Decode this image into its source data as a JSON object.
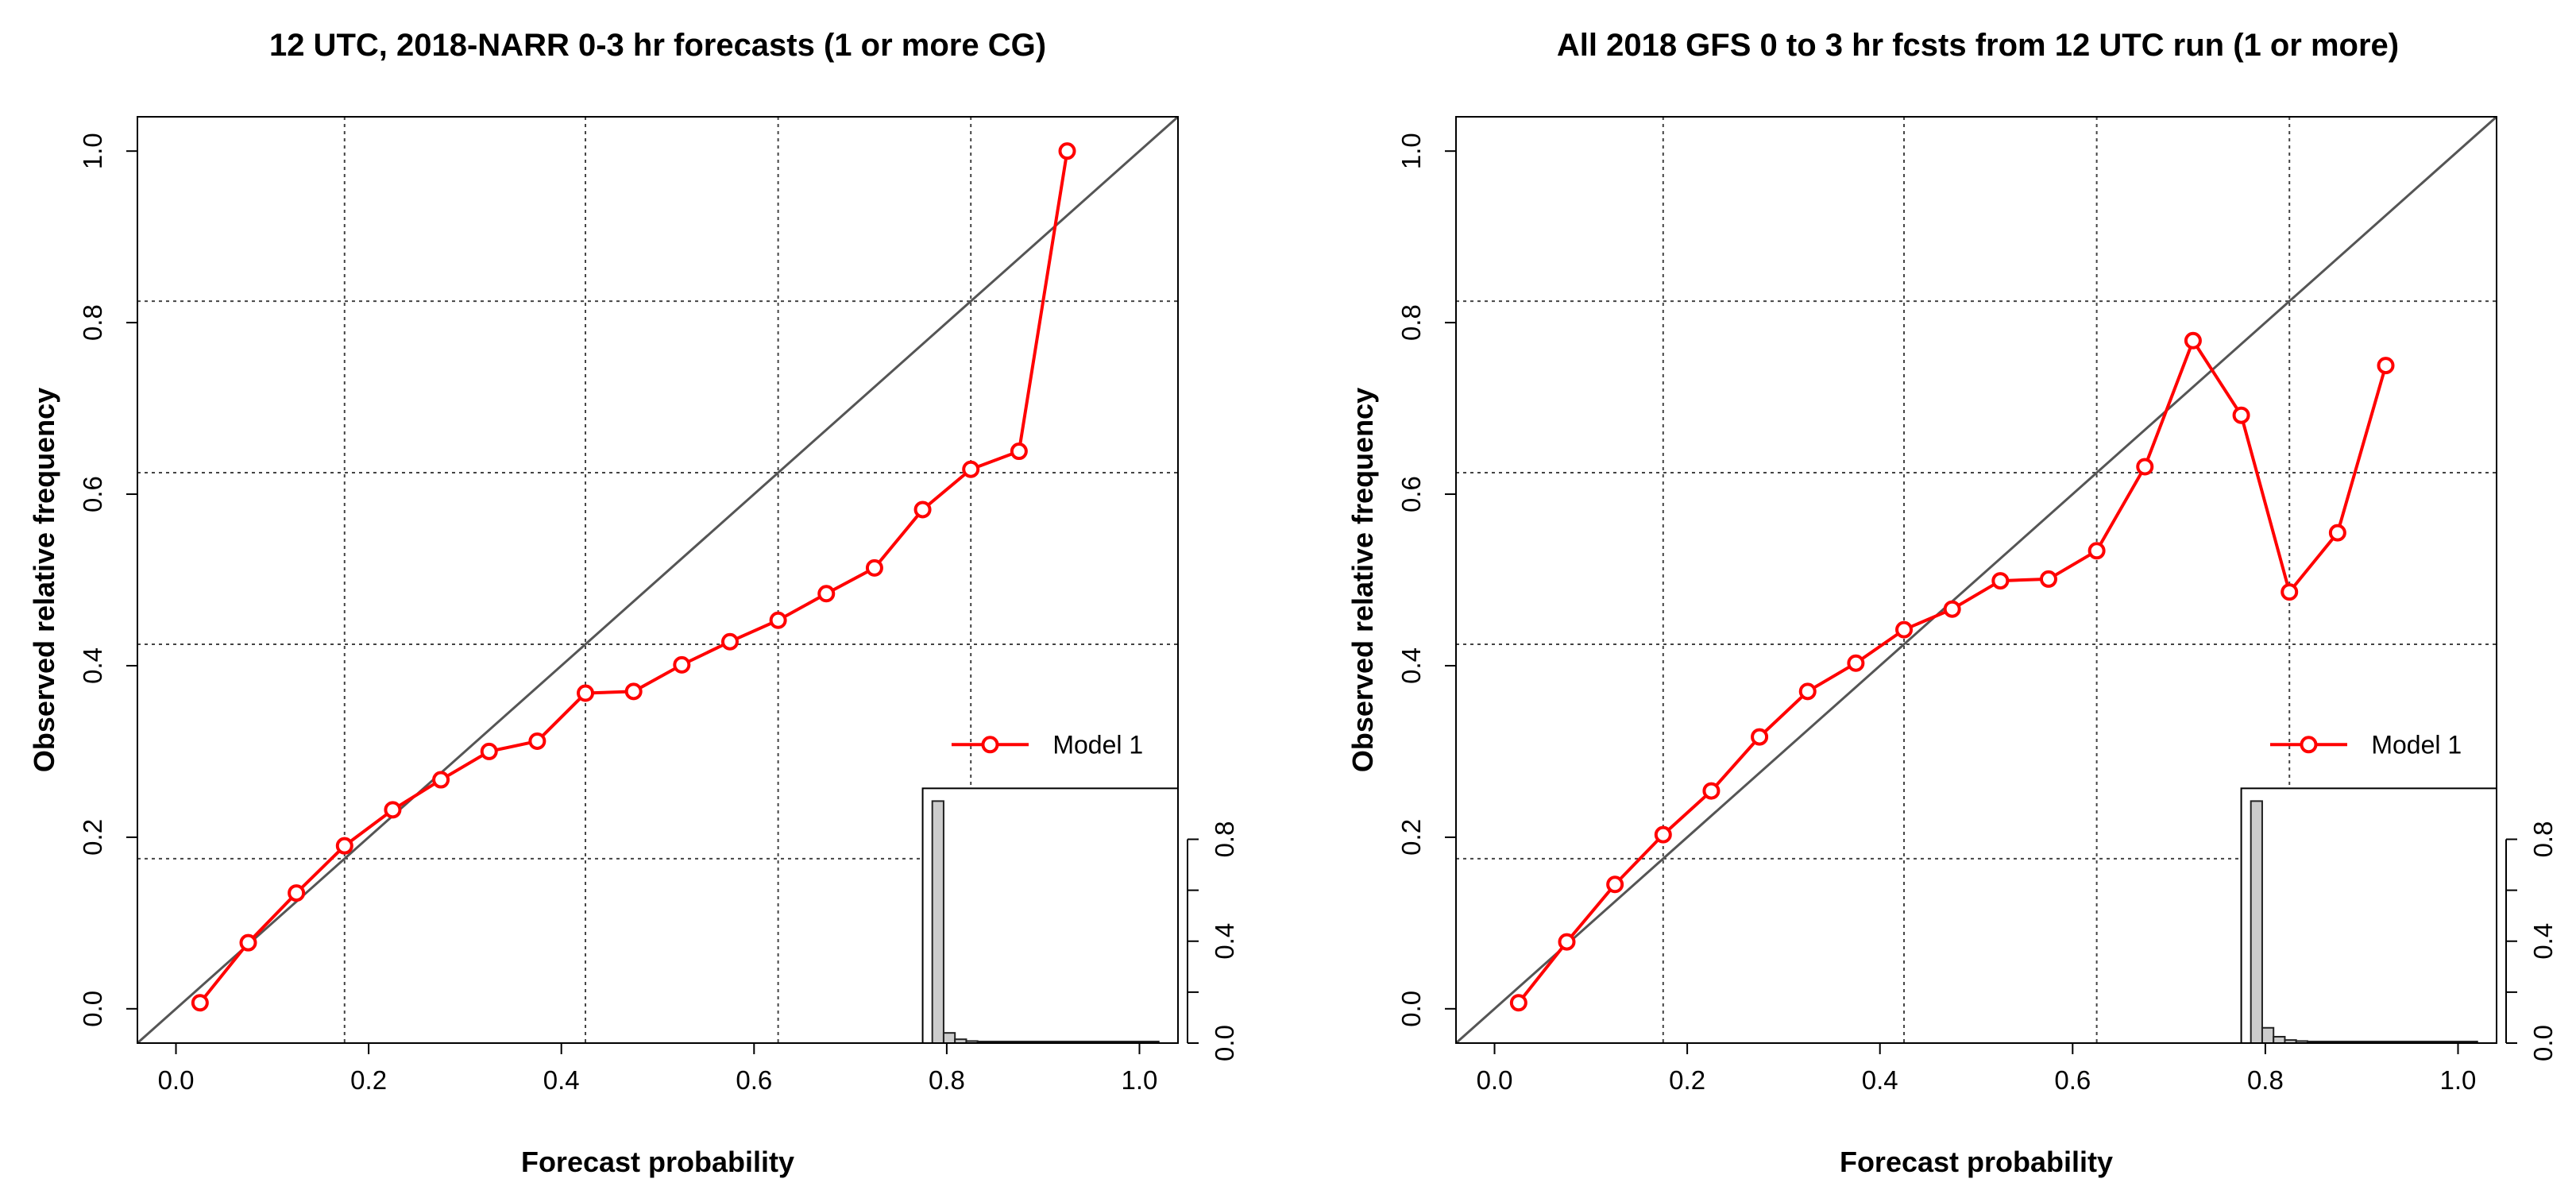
{
  "chart_data": [
    {
      "type": "line",
      "title": "12 UTC, 2018-NARR 0-3 hr forecasts (1 or more CG)",
      "xlabel": "Forecast probability",
      "ylabel": "Observed relative frequency",
      "xlim": [
        -0.04,
        1.04
      ],
      "ylim": [
        -0.04,
        1.04
      ],
      "xticks": [
        "0.0",
        "0.2",
        "0.4",
        "0.6",
        "0.8",
        "1.0"
      ],
      "yticks": [
        "0.0",
        "0.2",
        "0.4",
        "0.6",
        "0.8",
        "1.0"
      ],
      "grid": true,
      "grid_x": [
        0.175,
        0.425,
        0.625,
        0.825
      ],
      "grid_y": [
        0.175,
        0.425,
        0.625,
        0.825
      ],
      "diagonal": true,
      "legend": {
        "position": "right",
        "entries": [
          "Model 1"
        ]
      },
      "series": [
        {
          "name": "Model 1",
          "color": "#ff0000",
          "x": [
            0.025,
            0.075,
            0.125,
            0.175,
            0.225,
            0.275,
            0.325,
            0.375,
            0.425,
            0.475,
            0.525,
            0.575,
            0.625,
            0.675,
            0.725,
            0.775,
            0.825,
            0.875,
            0.925
          ],
          "y": [
            0.007,
            0.077,
            0.135,
            0.19,
            0.232,
            0.267,
            0.3,
            0.312,
            0.368,
            0.37,
            0.401,
            0.428,
            0.453,
            0.484,
            0.514,
            0.582,
            0.629,
            0.65,
            1.0
          ]
        }
      ],
      "inset": {
        "type": "histogram",
        "ylim": [
          0,
          1.0
        ],
        "yticks": [
          "0.0",
          "0.4",
          "0.8"
        ],
        "bins": [
          0.0,
          0.05,
          0.1,
          0.15,
          0.2,
          0.25,
          0.3,
          0.35,
          0.4,
          0.45,
          0.5,
          0.55,
          0.6,
          0.65,
          0.7,
          0.75,
          0.8,
          0.85,
          0.9,
          0.95,
          1.0
        ],
        "values": [
          0.95,
          0.04,
          0.015,
          0.008,
          0.005,
          0.004,
          0.003,
          0.003,
          0.002,
          0.002,
          0.002,
          0.002,
          0.001,
          0.001,
          0.001,
          0.001,
          0.001,
          0.001,
          0.0005,
          0.0005
        ]
      }
    },
    {
      "type": "line",
      "title": "All 2018 GFS 0 to 3 hr fcsts from 12 UTC run (1 or more)",
      "xlabel": "Forecast probability",
      "ylabel": "Observed relative frequency",
      "xlim": [
        -0.04,
        1.04
      ],
      "ylim": [
        -0.04,
        1.04
      ],
      "xticks": [
        "0.0",
        "0.2",
        "0.4",
        "0.6",
        "0.8",
        "1.0"
      ],
      "yticks": [
        "0.0",
        "0.2",
        "0.4",
        "0.6",
        "0.8",
        "1.0"
      ],
      "grid": true,
      "grid_x": [
        0.175,
        0.425,
        0.625,
        0.825
      ],
      "grid_y": [
        0.175,
        0.425,
        0.625,
        0.825
      ],
      "diagonal": true,
      "legend": {
        "position": "right",
        "entries": [
          "Model 1"
        ]
      },
      "series": [
        {
          "name": "Model 1",
          "color": "#ff0000",
          "x": [
            0.025,
            0.075,
            0.125,
            0.175,
            0.225,
            0.275,
            0.325,
            0.375,
            0.425,
            0.475,
            0.525,
            0.575,
            0.625,
            0.675,
            0.725,
            0.775,
            0.825,
            0.875,
            0.925
          ],
          "y": [
            0.007,
            0.078,
            0.145,
            0.203,
            0.254,
            0.317,
            0.37,
            0.403,
            0.442,
            0.466,
            0.499,
            0.501,
            0.534,
            0.632,
            0.779,
            0.692,
            0.486,
            0.555,
            0.75
          ]
        }
      ],
      "inset": {
        "type": "histogram",
        "ylim": [
          0,
          1.0
        ],
        "yticks": [
          "0.0",
          "0.4",
          "0.8"
        ],
        "bins": [
          0.0,
          0.05,
          0.1,
          0.15,
          0.2,
          0.25,
          0.3,
          0.35,
          0.4,
          0.45,
          0.5,
          0.55,
          0.6,
          0.65,
          0.7,
          0.75,
          0.8,
          0.85,
          0.9,
          0.95,
          1.0
        ],
        "values": [
          0.95,
          0.06,
          0.025,
          0.012,
          0.008,
          0.006,
          0.005,
          0.004,
          0.003,
          0.003,
          0.002,
          0.002,
          0.002,
          0.001,
          0.001,
          0.001,
          0.001,
          0.0005,
          0.0005,
          0.0005
        ]
      }
    }
  ]
}
